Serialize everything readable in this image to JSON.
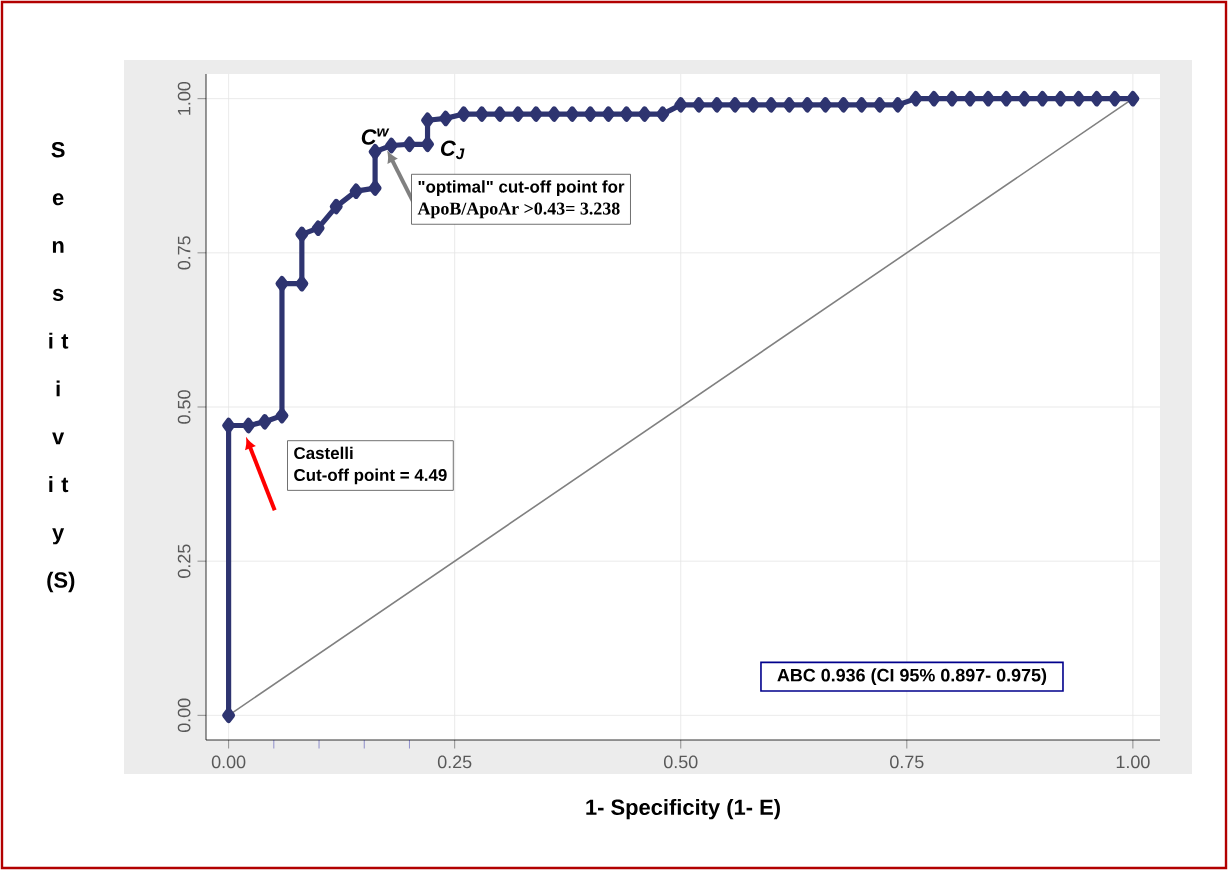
{
  "chart_data": {
    "type": "line",
    "xlabel": "1- Specificity (1- E)",
    "ylabel": "S e n s i t i v i t y (S)",
    "xlim": [
      -0.025,
      1.03
    ],
    "ylim": [
      -0.04,
      1.04
    ],
    "xticks": [
      {
        "value": 0,
        "label": "0.00"
      },
      {
        "value": 0.05,
        "label": null
      },
      {
        "value": 0.1,
        "label": null
      },
      {
        "value": 0.15,
        "label": null
      },
      {
        "value": 0.2,
        "label": null
      },
      {
        "value": 0.25,
        "label": "0.25"
      },
      {
        "value": 0.5,
        "label": "0.50"
      },
      {
        "value": 0.75,
        "label": "0.75"
      },
      {
        "value": 1,
        "label": "1.00"
      }
    ],
    "yticks": [
      {
        "value": 0,
        "label": "0.00"
      },
      {
        "value": 0.25,
        "label": "0.25"
      },
      {
        "value": 0.5,
        "label": "0.50"
      },
      {
        "value": 0.75,
        "label": "0.75"
      },
      {
        "value": 1,
        "label": "1.00"
      }
    ],
    "grid": true,
    "marker": "diamond",
    "series": [
      {
        "color": "#2e3470",
        "x": [
          0,
          0,
          0.022,
          0.04,
          0.059,
          0.059,
          0.081,
          0.081,
          0.099,
          0.119,
          0.141,
          0.162,
          0.162,
          0.18,
          0.2,
          0.22,
          0.22,
          0.24,
          0.26,
          0.28,
          0.3,
          0.32,
          0.34,
          0.36,
          0.38,
          0.4,
          0.42,
          0.44,
          0.46,
          0.48,
          0.5,
          0.52,
          0.54,
          0.56,
          0.58,
          0.6,
          0.62,
          0.64,
          0.66,
          0.68,
          0.7,
          0.72,
          0.74,
          0.76,
          0.78,
          0.8,
          0.82,
          0.84,
          0.86,
          0.88,
          0.9,
          0.92,
          0.94,
          0.96,
          0.98,
          1
        ],
        "values": [
          0,
          0.47,
          0.47,
          0.476,
          0.486,
          0.7,
          0.7,
          0.78,
          0.79,
          0.825,
          0.85,
          0.855,
          0.914,
          0.924,
          0.926,
          0.926,
          0.965,
          0.968,
          0.975,
          0.975,
          0.975,
          0.975,
          0.975,
          0.975,
          0.975,
          0.975,
          0.975,
          0.975,
          0.975,
          0.975,
          0.99,
          0.99,
          0.99,
          0.99,
          0.99,
          0.99,
          0.99,
          0.99,
          0.99,
          0.99,
          0.99,
          0.99,
          0.99,
          1,
          1,
          1,
          1,
          1,
          1,
          1,
          1,
          1,
          1,
          1,
          1,
          1
        ]
      },
      {
        "color": "#808080",
        "marker": "none",
        "x": [
          0,
          1
        ],
        "values": [
          0,
          1
        ]
      }
    ],
    "annotations": [
      {
        "text": "C$^{w}$",
        "x": 0.162,
        "y": 0.914
      },
      {
        "text": "C$_{J}$",
        "x": 0.2,
        "y": 0.926
      },
      "Castelli",
      "Cut-off point = 4.49",
      "\"optimal\" cut-off point for",
      "ApoB/ApoAr >0.43= 3.238",
      "ABC 0.936  (CI 95% 0.897- 0.975)"
    ]
  }
}
